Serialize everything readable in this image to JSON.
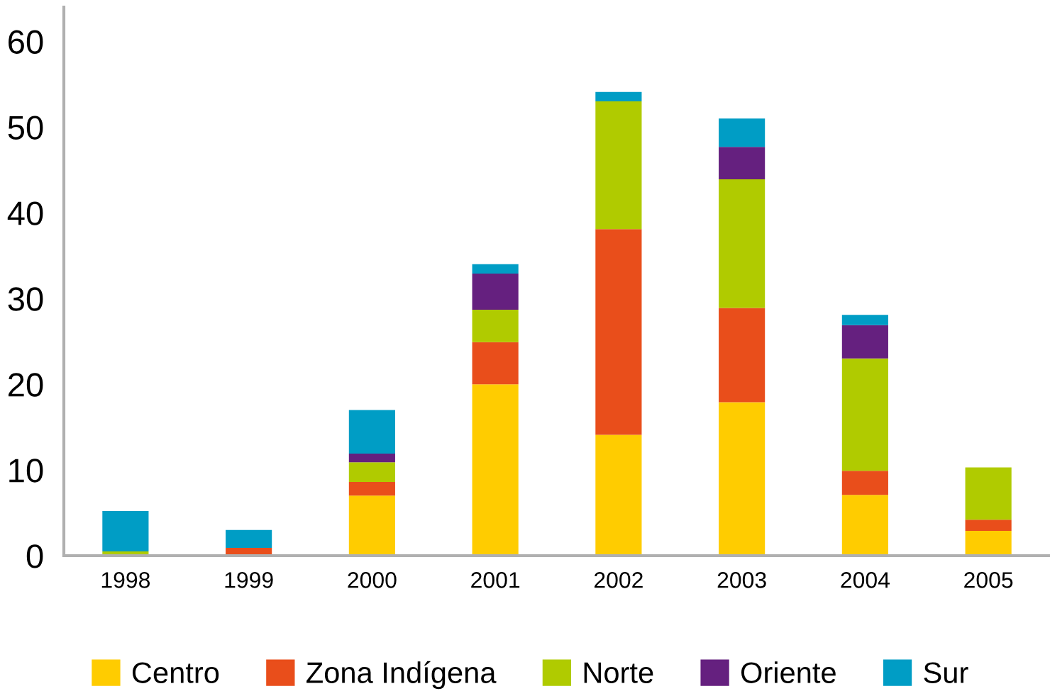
{
  "chart_data": {
    "type": "bar",
    "stacked": true,
    "categories": [
      "1998",
      "1999",
      "2000",
      "2001",
      "2002",
      "2003",
      "2004",
      "2005"
    ],
    "series": [
      {
        "name": "Centro",
        "color": "#ffcc00",
        "values": [
          0,
          0,
          7,
          20,
          14.1,
          17.9,
          7.1,
          2.9
        ]
      },
      {
        "name": "Zona Indígena",
        "color": "#e94e1b",
        "values": [
          0,
          0.9,
          1.6,
          4.9,
          24,
          11,
          2.8,
          1.3
        ]
      },
      {
        "name": "Norte",
        "color": "#b0cb00",
        "values": [
          0.5,
          0,
          2.3,
          3.8,
          14.9,
          15,
          13.1,
          6.1
        ]
      },
      {
        "name": "Oriente",
        "color": "#65207f",
        "values": [
          0,
          0,
          1,
          4.2,
          0,
          3.8,
          3.9,
          0
        ]
      },
      {
        "name": "Sur",
        "color": "#009dc5",
        "values": [
          4.7,
          2.1,
          5.1,
          1.1,
          1.1,
          3.3,
          1.2,
          0
        ]
      }
    ],
    "ylim": [
      0,
      64
    ],
    "yticks": [
      0,
      10,
      20,
      30,
      40,
      50,
      60
    ],
    "grid": false,
    "legend": "bottom"
  }
}
